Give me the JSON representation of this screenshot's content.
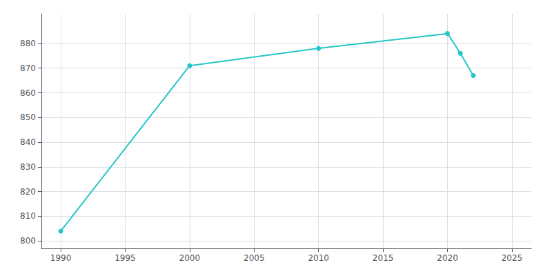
{
  "chart_data": {
    "type": "line",
    "x": [
      1990,
      2000,
      2010,
      2020,
      2021,
      2022
    ],
    "values": [
      804,
      871,
      878,
      884,
      876,
      867
    ],
    "color": "#26c6c6",
    "marker": "circle",
    "xlim": [
      1988.5,
      2026.5
    ],
    "ylim": [
      797,
      892
    ],
    "xticks": [
      1990,
      1995,
      2000,
      2005,
      2010,
      2015,
      2020,
      2025
    ],
    "yticks": [
      800,
      810,
      820,
      830,
      840,
      850,
      860,
      870,
      880
    ],
    "grid": true
  }
}
